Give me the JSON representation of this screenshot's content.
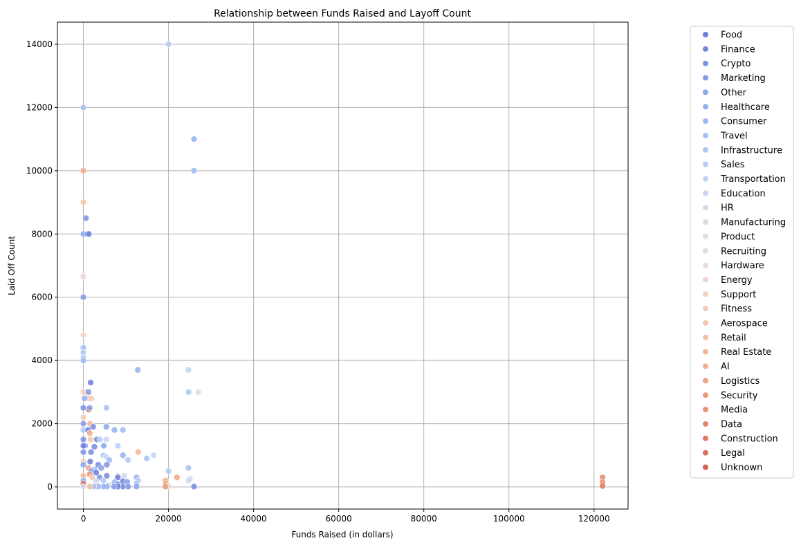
{
  "chart_data": {
    "type": "scatter",
    "title": "Relationship between Funds Raised and Layoff Count",
    "xlabel": "Funds Raised (in dollars)",
    "ylabel": "Laid Off Count",
    "xlim": [
      -6100,
      128000
    ],
    "ylim": [
      -700,
      14700
    ],
    "xticks": [
      0,
      20000,
      40000,
      60000,
      80000,
      100000,
      120000
    ],
    "yticks": [
      0,
      2000,
      4000,
      6000,
      8000,
      10000,
      12000,
      14000
    ],
    "grid": true,
    "legend_position": "outside-right",
    "categories": [
      {
        "name": "Food",
        "color": "#6d7fd9"
      },
      {
        "name": "Finance",
        "color": "#7389de"
      },
      {
        "name": "Crypto",
        "color": "#7a93e4"
      },
      {
        "name": "Marketing",
        "color": "#829ce8"
      },
      {
        "name": "Other",
        "color": "#8aa6ed"
      },
      {
        "name": "Healthcare",
        "color": "#93b0f0"
      },
      {
        "name": "Consumer",
        "color": "#9cb8f3"
      },
      {
        "name": "Travel",
        "color": "#a6c0f5"
      },
      {
        "name": "Infrastructure",
        "color": "#afc7f6"
      },
      {
        "name": "Sales",
        "color": "#b8cef6"
      },
      {
        "name": "Transportation",
        "color": "#c1d3f5"
      },
      {
        "name": "Education",
        "color": "#c9d7f2"
      },
      {
        "name": "HR",
        "color": "#d2dbee"
      },
      {
        "name": "Manufacturing",
        "color": "#d9dde8"
      },
      {
        "name": "Product",
        "color": "#dfdfe0"
      },
      {
        "name": "Recruiting",
        "color": "#e5dcd8"
      },
      {
        "name": "Hardware",
        "color": "#eadbd3"
      },
      {
        "name": "Energy",
        "color": "#eed6cb"
      },
      {
        "name": "Support",
        "color": "#f1d1c1"
      },
      {
        "name": "Fitness",
        "color": "#f3cbb7"
      },
      {
        "name": "Aerospace",
        "color": "#f4c4ac"
      },
      {
        "name": "Retail",
        "color": "#f4bda1"
      },
      {
        "name": "Real Estate",
        "color": "#f3b597"
      },
      {
        "name": "AI",
        "color": "#f2ad8c"
      },
      {
        "name": "Logistics",
        "color": "#eea483",
        "note": ""
      },
      {
        "name": "Security",
        "color": "#eb9a79"
      },
      {
        "name": "Media",
        "color": "#e69070"
      },
      {
        "name": "Data",
        "color": "#e18668"
      },
      {
        "name": "Construction",
        "color": "#dc7b5f"
      },
      {
        "name": "Legal",
        "color": "#d66f59"
      },
      {
        "name": "Unknown",
        "color": "#d06352"
      }
    ],
    "points": [
      {
        "x": 20000,
        "y": 14000,
        "c": "Sales"
      },
      {
        "x": 0,
        "y": 12000,
        "c": "Travel"
      },
      {
        "x": 26000,
        "y": 11000,
        "c": "Healthcare"
      },
      {
        "x": 26000,
        "y": 10000,
        "c": "Consumer"
      },
      {
        "x": 0,
        "y": 10000,
        "c": "AI"
      },
      {
        "x": 0,
        "y": 9000,
        "c": "Aerospace"
      },
      {
        "x": 600,
        "y": 8500,
        "c": "Crypto"
      },
      {
        "x": 0,
        "y": 8000,
        "c": "Other"
      },
      {
        "x": 1000,
        "y": 8000,
        "c": "Food"
      },
      {
        "x": 1300,
        "y": 8000,
        "c": "Finance"
      },
      {
        "x": 0,
        "y": 6650,
        "c": "Hardware"
      },
      {
        "x": 0,
        "y": 6000,
        "c": "Marketing"
      },
      {
        "x": 0,
        "y": 4800,
        "c": "Energy"
      },
      {
        "x": 0,
        "y": 4400,
        "c": "Travel"
      },
      {
        "x": 0,
        "y": 4250,
        "c": "Infrastructure"
      },
      {
        "x": 0,
        "y": 4100,
        "c": "Sales"
      },
      {
        "x": 0,
        "y": 4000,
        "c": "Consumer"
      },
      {
        "x": 12800,
        "y": 3700,
        "c": "Healthcare"
      },
      {
        "x": 24700,
        "y": 3700,
        "c": "Transportation"
      },
      {
        "x": 1700,
        "y": 3300,
        "c": "Food"
      },
      {
        "x": 24700,
        "y": 3000,
        "c": "Infrastructure"
      },
      {
        "x": 27000,
        "y": 3000,
        "c": "Recruiting"
      },
      {
        "x": 0,
        "y": 3000,
        "c": "Fitness"
      },
      {
        "x": 800,
        "y": 3000,
        "c": "Aerospace"
      },
      {
        "x": 1200,
        "y": 3000,
        "c": "Marketing"
      },
      {
        "x": 1300,
        "y": 2800,
        "c": "Retail"
      },
      {
        "x": 1900,
        "y": 2800,
        "c": "Support"
      },
      {
        "x": 300,
        "y": 2800,
        "c": "Healthcare"
      },
      {
        "x": 5400,
        "y": 2500,
        "c": "Travel"
      },
      {
        "x": 0,
        "y": 2500,
        "c": "Crypto"
      },
      {
        "x": 1300,
        "y": 2450,
        "c": "Unknown"
      },
      {
        "x": 1500,
        "y": 2500,
        "c": "Other"
      },
      {
        "x": 0,
        "y": 2200,
        "c": "Fitness"
      },
      {
        "x": 0,
        "y": 2000,
        "c": "Marketing"
      },
      {
        "x": 1600,
        "y": 2000,
        "c": "Real Estate"
      },
      {
        "x": 2300,
        "y": 1900,
        "c": "Finance"
      },
      {
        "x": 5400,
        "y": 1900,
        "c": "Other"
      },
      {
        "x": 9300,
        "y": 1800,
        "c": "Consumer"
      },
      {
        "x": 7300,
        "y": 1800,
        "c": "Healthcare"
      },
      {
        "x": 0,
        "y": 1800,
        "c": "Infrastructure"
      },
      {
        "x": 1100,
        "y": 1800,
        "c": "Food"
      },
      {
        "x": 1500,
        "y": 1700,
        "c": "AI"
      },
      {
        "x": 1700,
        "y": 1500,
        "c": "Aerospace"
      },
      {
        "x": 0,
        "y": 1500,
        "c": "Crypto"
      },
      {
        "x": 3200,
        "y": 1500,
        "c": "Food"
      },
      {
        "x": 3900,
        "y": 1500,
        "c": "Sales"
      },
      {
        "x": 5400,
        "y": 1500,
        "c": "Education"
      },
      {
        "x": 8100,
        "y": 1300,
        "c": "Sales"
      },
      {
        "x": 4800,
        "y": 1300,
        "c": "Other"
      },
      {
        "x": 2600,
        "y": 1270,
        "c": "Finance"
      },
      {
        "x": 400,
        "y": 1300,
        "c": "Marketing"
      },
      {
        "x": 0,
        "y": 1300,
        "c": "Food"
      },
      {
        "x": 1800,
        "y": 1100,
        "c": "Finance"
      },
      {
        "x": 0,
        "y": 1100,
        "c": "Crypto"
      },
      {
        "x": 12900,
        "y": 1100,
        "c": "Real Estate"
      },
      {
        "x": 16500,
        "y": 1000,
        "c": "Transportation"
      },
      {
        "x": 9300,
        "y": 1000,
        "c": "Healthcare"
      },
      {
        "x": 4700,
        "y": 1000,
        "c": "Infrastructure"
      },
      {
        "x": 5400,
        "y": 950,
        "c": "Education"
      },
      {
        "x": 14900,
        "y": 900,
        "c": "Travel"
      },
      {
        "x": 10500,
        "y": 850,
        "c": "Infrastructure"
      },
      {
        "x": 6100,
        "y": 850,
        "c": "Consumer"
      },
      {
        "x": 1600,
        "y": 800,
        "c": "Food"
      },
      {
        "x": 0,
        "y": 800,
        "c": "Fitness"
      },
      {
        "x": 0,
        "y": 700,
        "c": "Other"
      },
      {
        "x": 3500,
        "y": 700,
        "c": "Finance"
      },
      {
        "x": 5500,
        "y": 700,
        "c": "Crypto"
      },
      {
        "x": 4200,
        "y": 600,
        "c": "Marketing"
      },
      {
        "x": 24700,
        "y": 600,
        "c": "Travel"
      },
      {
        "x": 1200,
        "y": 600,
        "c": "Logistics"
      },
      {
        "x": 2600,
        "y": 550,
        "c": "Consumer"
      },
      {
        "x": 20000,
        "y": 500,
        "c": "Infrastructure"
      },
      {
        "x": 1800,
        "y": 500,
        "c": "Other"
      },
      {
        "x": 3000,
        "y": 450,
        "c": "Food"
      },
      {
        "x": 1500,
        "y": 400,
        "c": "Security"
      },
      {
        "x": 8100,
        "y": 350,
        "c": "Recruiting"
      },
      {
        "x": 9600,
        "y": 350,
        "c": "Education"
      },
      {
        "x": 5500,
        "y": 350,
        "c": "Finance"
      },
      {
        "x": 0,
        "y": 350,
        "c": "Real Estate"
      },
      {
        "x": 22000,
        "y": 300,
        "c": "Logistics"
      },
      {
        "x": 12500,
        "y": 300,
        "c": "Healthcare"
      },
      {
        "x": 8100,
        "y": 300,
        "c": "Food"
      },
      {
        "x": 3800,
        "y": 300,
        "c": "Crypto"
      },
      {
        "x": 2100,
        "y": 300,
        "c": "Aerospace"
      },
      {
        "x": 122000,
        "y": 300,
        "c": "Data"
      },
      {
        "x": 19300,
        "y": 200,
        "c": "AI"
      },
      {
        "x": 25000,
        "y": 250,
        "c": "Transportation"
      },
      {
        "x": 24700,
        "y": 200,
        "c": "HR"
      },
      {
        "x": 12900,
        "y": 200,
        "c": "Sales"
      },
      {
        "x": 9300,
        "y": 180,
        "c": "Food"
      },
      {
        "x": 10300,
        "y": 160,
        "c": "Marketing"
      },
      {
        "x": 4700,
        "y": 200,
        "c": "Infrastructure"
      },
      {
        "x": 7300,
        "y": 150,
        "c": "Consumer"
      },
      {
        "x": 3000,
        "y": 180,
        "c": "Education"
      },
      {
        "x": 0,
        "y": 200,
        "c": "Healthcare"
      },
      {
        "x": 122000,
        "y": 150,
        "c": "Media"
      },
      {
        "x": 19300,
        "y": 100,
        "c": "Logistics"
      },
      {
        "x": 12500,
        "y": 100,
        "c": "Travel"
      },
      {
        "x": 8100,
        "y": 80,
        "c": "Crypto"
      },
      {
        "x": 6000,
        "y": 60,
        "c": "Manufacturing"
      },
      {
        "x": 3000,
        "y": 50,
        "c": "Support"
      },
      {
        "x": 0,
        "y": 100,
        "c": "Unknown"
      },
      {
        "x": 122000,
        "y": 30,
        "c": "Construction"
      },
      {
        "x": 26000,
        "y": 10,
        "c": "Finance"
      },
      {
        "x": 20000,
        "y": 20,
        "c": "Energy"
      },
      {
        "x": 19300,
        "y": 10,
        "c": "Security"
      },
      {
        "x": 12500,
        "y": 10,
        "c": "Other"
      },
      {
        "x": 10500,
        "y": 10,
        "c": "Crypto"
      },
      {
        "x": 9300,
        "y": 10,
        "c": "Finance"
      },
      {
        "x": 8100,
        "y": 10,
        "c": "Food"
      },
      {
        "x": 7200,
        "y": 10,
        "c": "Marketing"
      },
      {
        "x": 5500,
        "y": 10,
        "c": "Other"
      },
      {
        "x": 4700,
        "y": 10,
        "c": "Healthcare"
      },
      {
        "x": 3500,
        "y": 10,
        "c": "Consumer"
      },
      {
        "x": 2400,
        "y": 10,
        "c": "Travel"
      },
      {
        "x": 1500,
        "y": 10,
        "c": "Retail"
      },
      {
        "x": 0,
        "y": 10,
        "c": "HR"
      }
    ]
  }
}
